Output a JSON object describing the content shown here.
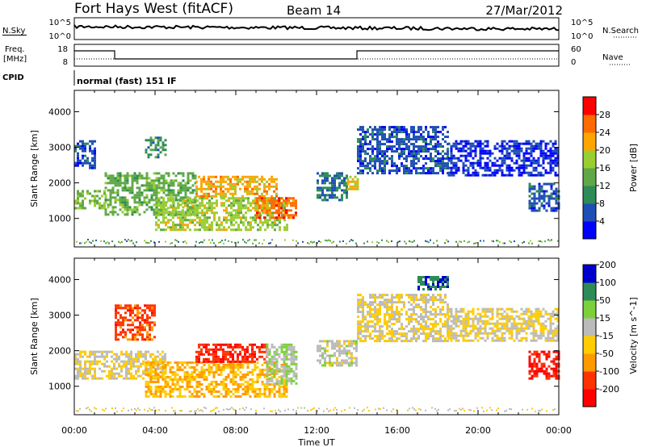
{
  "header": {
    "station": "Fort Hays West (fitACF)",
    "beam": "Beam 14",
    "date": "27/Mar/2012"
  },
  "noise_panel": {
    "left_label": "N.Sky",
    "right_label": "N.Search",
    "ticks_top": "10^5",
    "ticks_bottom": "10^0"
  },
  "freq_panel": {
    "left_label_1": "Freq.",
    "left_label_2": "[MHz]",
    "left_tick_top": "18",
    "left_tick_bottom": "8",
    "right_label": "Nave",
    "right_tick_top": "60",
    "right_tick_bottom": "0"
  },
  "cpid": {
    "label": "CPID",
    "mode": "normal (fast) 151 IF"
  },
  "colors": {
    "power": [
      "#0000ff",
      "#1f4fb4",
      "#2e8b57",
      "#5fa848",
      "#9acd32",
      "#ffa500",
      "#ff6a00",
      "#ff0000"
    ],
    "velocity": [
      "#ff0000",
      "#ff3300",
      "#ff9900",
      "#ffcc00",
      "#bbbbbb",
      "#7cd13b",
      "#2e8b57",
      "#0000cc"
    ]
  },
  "chart_data": [
    {
      "type": "heatmap",
      "quantity": "power",
      "xlabel": "Time UT",
      "ylabel": "Slant Range [km]",
      "x_ticks": [
        "00:00",
        "04:00",
        "08:00",
        "12:00",
        "16:00",
        "20:00",
        "00:00"
      ],
      "x_range_hours": [
        0,
        24
      ],
      "y_ticks": [
        "1000",
        "2000",
        "3000",
        "4000"
      ],
      "y_range": [
        200,
        4600
      ],
      "colorbar_label": "Power [dB]",
      "colorbar_ticks": [
        "4",
        "8",
        "12",
        "16",
        "20",
        "24",
        "28"
      ],
      "colorbar_range": [
        0,
        32
      ],
      "regions": [
        {
          "t": [
            0.0,
            1.5
          ],
          "r": [
            1300,
            1800
          ],
          "level": 16
        },
        {
          "t": [
            0.0,
            1.0
          ],
          "r": [
            2400,
            3200
          ],
          "level": 6
        },
        {
          "t": [
            1.5,
            6.0
          ],
          "r": [
            1100,
            2300
          ],
          "level": 14
        },
        {
          "t": [
            3.5,
            4.5
          ],
          "r": [
            2700,
            3300
          ],
          "level": 10
        },
        {
          "t": [
            4.0,
            10.5
          ],
          "r": [
            700,
            1600
          ],
          "level": 18
        },
        {
          "t": [
            6.0,
            10.0
          ],
          "r": [
            1600,
            2200
          ],
          "level": 22
        },
        {
          "t": [
            9.0,
            11.0
          ],
          "r": [
            1000,
            1600
          ],
          "level": 26
        },
        {
          "t": [
            12.0,
            13.5
          ],
          "r": [
            1500,
            2300
          ],
          "level": 8
        },
        {
          "t": [
            13.5,
            14.0
          ],
          "r": [
            1800,
            2200
          ],
          "level": 20
        },
        {
          "t": [
            14.0,
            18.5
          ],
          "r": [
            2300,
            3600
          ],
          "level": 6
        },
        {
          "t": [
            18.5,
            24.0
          ],
          "r": [
            2200,
            3200
          ],
          "level": 4
        },
        {
          "t": [
            22.5,
            24.0
          ],
          "r": [
            1200,
            2000
          ],
          "level": 6
        }
      ]
    },
    {
      "type": "heatmap",
      "quantity": "velocity",
      "xlabel": "Time UT",
      "ylabel": "Slant Range [km]",
      "x_ticks": [
        "00:00",
        "04:00",
        "08:00",
        "12:00",
        "16:00",
        "20:00",
        "00:00"
      ],
      "x_range_hours": [
        0,
        24
      ],
      "y_ticks": [
        "1000",
        "2000",
        "3000",
        "4000"
      ],
      "y_range": [
        200,
        4600
      ],
      "colorbar_label": "Velocity [m s^-1]",
      "colorbar_ticks": [
        "-200",
        "-100",
        "-50",
        "-15",
        "15",
        "50",
        "100",
        "200"
      ],
      "colorbar_range": [
        -250,
        250
      ],
      "regions": [
        {
          "t": [
            0.0,
            4.5
          ],
          "r": [
            1200,
            2000
          ],
          "level": 0
        },
        {
          "t": [
            2.0,
            4.0
          ],
          "r": [
            2300,
            3300
          ],
          "level": -150
        },
        {
          "t": [
            3.5,
            10.5
          ],
          "r": [
            700,
            1700
          ],
          "level": -60
        },
        {
          "t": [
            6.0,
            9.5
          ],
          "r": [
            1700,
            2200
          ],
          "level": -180
        },
        {
          "t": [
            9.5,
            11.0
          ],
          "r": [
            1100,
            2200
          ],
          "level": 60
        },
        {
          "t": [
            12.0,
            14.0
          ],
          "r": [
            1600,
            2300
          ],
          "level": 30
        },
        {
          "t": [
            14.0,
            18.5
          ],
          "r": [
            2300,
            3600
          ],
          "level": 0
        },
        {
          "t": [
            17.0,
            18.5
          ],
          "r": [
            3700,
            4100
          ],
          "level": 180
        },
        {
          "t": [
            18.5,
            24.0
          ],
          "r": [
            2300,
            3200
          ],
          "level": 0
        },
        {
          "t": [
            22.5,
            24.0
          ],
          "r": [
            1200,
            2000
          ],
          "level": -200
        }
      ]
    }
  ]
}
